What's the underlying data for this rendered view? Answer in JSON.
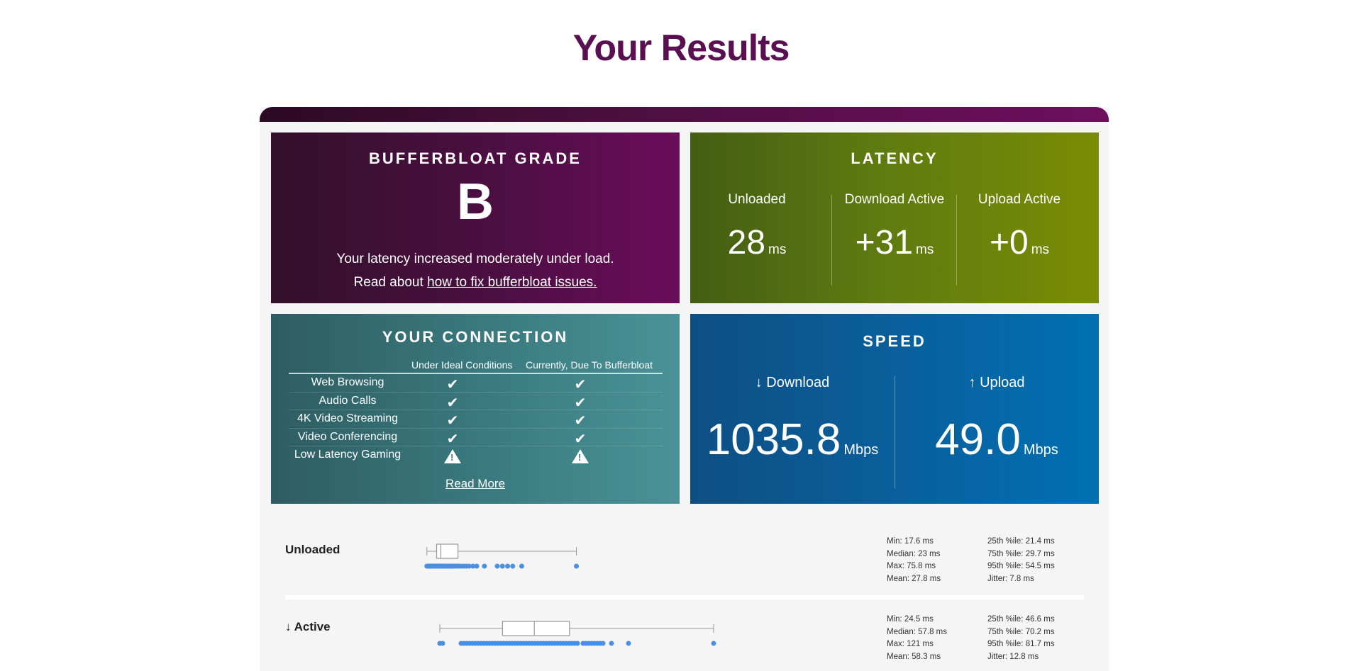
{
  "page_title": "Your Results",
  "grade": {
    "title": "Bufferbloat Grade",
    "letter": "B",
    "description": "Your latency increased moderately under load.",
    "read_prefix": "Read about ",
    "link_text": "how to fix bufferbloat issues."
  },
  "latency": {
    "title": "Latency",
    "columns": [
      {
        "label": "Unloaded",
        "value": "28",
        "unit": "ms"
      },
      {
        "label": "Download Active",
        "value": "+31",
        "unit": "ms"
      },
      {
        "label": "Upload Active",
        "value": "+0",
        "unit": "ms"
      }
    ]
  },
  "connection": {
    "title": "Your Connection",
    "col_ideal": "Under Ideal Conditions",
    "col_current": "Currently, Due To Bufferbloat",
    "rows": [
      {
        "name": "Web Browsing",
        "ideal": "ok",
        "current": "ok"
      },
      {
        "name": "Audio Calls",
        "ideal": "ok",
        "current": "ok"
      },
      {
        "name": "4K Video Streaming",
        "ideal": "ok",
        "current": "ok"
      },
      {
        "name": "Video Conferencing",
        "ideal": "ok",
        "current": "ok"
      },
      {
        "name": "Low Latency Gaming",
        "ideal": "warning",
        "current": "warning"
      }
    ],
    "read_more": "Read More",
    "check_glyph": "✔"
  },
  "speed": {
    "title": "Speed",
    "download": {
      "label": "↓ Download",
      "value": "1035.8",
      "unit": "Mbps"
    },
    "upload": {
      "label": "↑ Upload",
      "value": "49.0",
      "unit": "Mbps"
    }
  },
  "distributions": [
    {
      "label": "Unloaded",
      "stats_left": [
        "Min: 17.6 ms",
        "Median: 23 ms",
        "Max: 75.8 ms",
        "Mean: 27.8 ms"
      ],
      "stats_right": [
        "25th %ile: 21.4 ms",
        "75th %ile: 29.7 ms",
        "95th %ile: 54.5 ms",
        "Jitter: 7.8 ms"
      ],
      "box": {
        "min": 17.6,
        "q1": 21.4,
        "median": 23,
        "q3": 29.7,
        "max": 75.8
      },
      "points": [
        17.6,
        18,
        18.3,
        18.6,
        19,
        19.2,
        19.5,
        19.8,
        20,
        20.3,
        20.6,
        21,
        21.3,
        21.6,
        22,
        22.3,
        22.6,
        23,
        23.4,
        23.8,
        24.2,
        24.6,
        25,
        25.5,
        26,
        26.5,
        27,
        27.6,
        28.2,
        28.8,
        29.5,
        30.2,
        31,
        32,
        33,
        34,
        35.5,
        37,
        40,
        45,
        47,
        49,
        51,
        54.5,
        75.8
      ],
      "scale": [
        0,
        90
      ]
    },
    {
      "label": "↓ Active",
      "stats_left": [
        "Min: 24.5 ms",
        "Median: 57.8 ms",
        "Max: 121 ms",
        "Mean: 58.3 ms"
      ],
      "stats_right": [
        "25th %ile: 46.6 ms",
        "75th %ile: 70.2 ms",
        "95th %ile: 81.7 ms",
        "Jitter: 12.8 ms"
      ],
      "box": {
        "min": 24.5,
        "q1": 46.6,
        "median": 57.8,
        "q3": 70.2,
        "max": 121
      },
      "points": [
        24.5,
        25.5,
        32,
        33,
        34,
        35,
        36,
        37,
        38,
        39,
        40,
        41,
        42,
        43,
        44,
        45,
        46,
        47,
        48,
        49,
        50,
        51,
        52,
        53,
        54,
        55,
        56,
        57,
        58,
        59,
        60,
        61,
        62,
        63,
        64,
        65,
        66,
        67,
        68,
        69,
        70,
        71,
        72,
        73,
        75,
        76,
        77,
        78,
        79,
        80,
        81,
        82,
        85,
        91,
        121
      ],
      "scale": [
        0,
        140
      ]
    }
  ]
}
